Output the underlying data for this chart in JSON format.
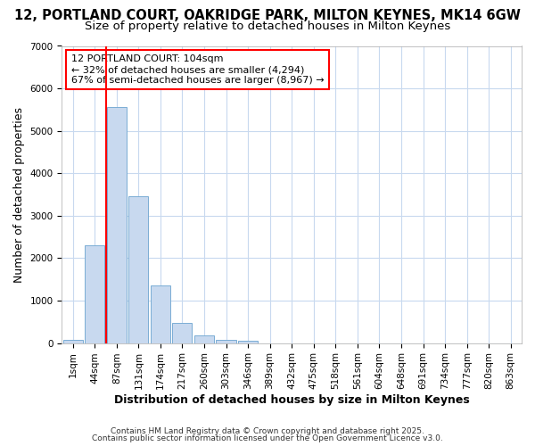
{
  "title_line1": "12, PORTLAND COURT, OAKRIDGE PARK, MILTON KEYNES, MK14 6GW",
  "title_line2": "Size of property relative to detached houses in Milton Keynes",
  "xlabel": "Distribution of detached houses by size in Milton Keynes",
  "ylabel": "Number of detached properties",
  "bar_labels": [
    "1sqm",
    "44sqm",
    "87sqm",
    "131sqm",
    "174sqm",
    "217sqm",
    "260sqm",
    "303sqm",
    "346sqm",
    "389sqm",
    "432sqm",
    "475sqm",
    "518sqm",
    "561sqm",
    "604sqm",
    "648sqm",
    "691sqm",
    "734sqm",
    "777sqm",
    "820sqm",
    "863sqm"
  ],
  "bar_heights": [
    75,
    2300,
    5560,
    3450,
    1360,
    470,
    185,
    80,
    50,
    0,
    0,
    0,
    0,
    0,
    0,
    0,
    0,
    0,
    0,
    0,
    0
  ],
  "bar_color": "#c8d9ef",
  "bar_edge_color": "#7aadd4",
  "grid_color": "#c8d9ef",
  "background_color": "#ffffff",
  "vline_x": 1.5,
  "vline_color": "red",
  "ylim": [
    0,
    7000
  ],
  "annotation_box_text": "12 PORTLAND COURT: 104sqm\n← 32% of detached houses are smaller (4,294)\n67% of semi-detached houses are larger (8,967) →",
  "footer_line1": "Contains HM Land Registry data © Crown copyright and database right 2025.",
  "footer_line2": "Contains public sector information licensed under the Open Government Licence v3.0.",
  "title_fontsize": 10.5,
  "subtitle_fontsize": 9.5,
  "tick_fontsize": 7.5,
  "label_fontsize": 9
}
